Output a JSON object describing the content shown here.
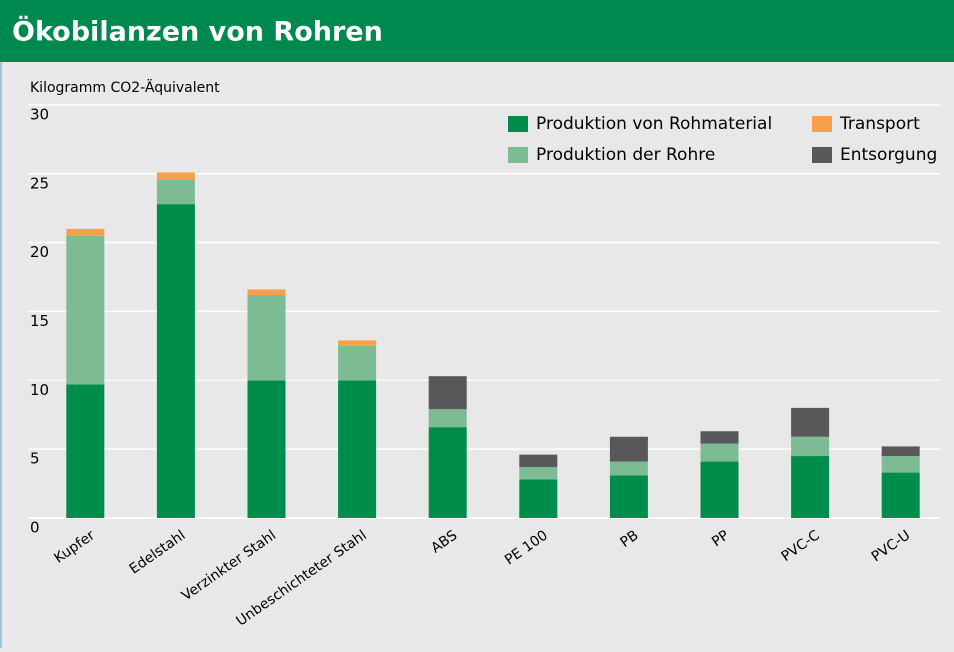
{
  "chart_data": {
    "type": "stacked_bar",
    "title": "Ökobilanzen von Rohren",
    "y_label": "Kilogramm CO2-Äquivalent",
    "categories": [
      "Kupfer",
      "Edelstahl",
      "Verzinkter Stahl",
      "Unbeschichteter Stahl",
      "ABS",
      "PE 100",
      "PB",
      "PP",
      "PVC-C",
      "PVC-U"
    ],
    "series": [
      {
        "name": "Produktion von Rohmaterial",
        "color": "#008c4a",
        "values": [
          9.7,
          22.8,
          10.0,
          10.0,
          6.6,
          2.8,
          3.1,
          4.1,
          4.5,
          3.3
        ]
      },
      {
        "name": "Produktion der Rohre",
        "color": "#7dbb94",
        "values": [
          10.8,
          1.8,
          6.2,
          2.5,
          1.3,
          0.9,
          1.0,
          1.3,
          1.4,
          1.2
        ]
      },
      {
        "name": "Transport",
        "color": "#f7a04a",
        "values": [
          0.5,
          0.5,
          0.4,
          0.4,
          0,
          0,
          0,
          0,
          0,
          0
        ]
      },
      {
        "name": "Entsorgung",
        "color": "#58585a",
        "values": [
          0,
          0,
          0,
          0,
          2.4,
          0.9,
          1.8,
          0.9,
          2.1,
          0.7
        ]
      }
    ],
    "ylim": [
      0,
      30
    ],
    "yticks": [
      0,
      5,
      10,
      15,
      20,
      25,
      30
    ],
    "grid": true
  }
}
